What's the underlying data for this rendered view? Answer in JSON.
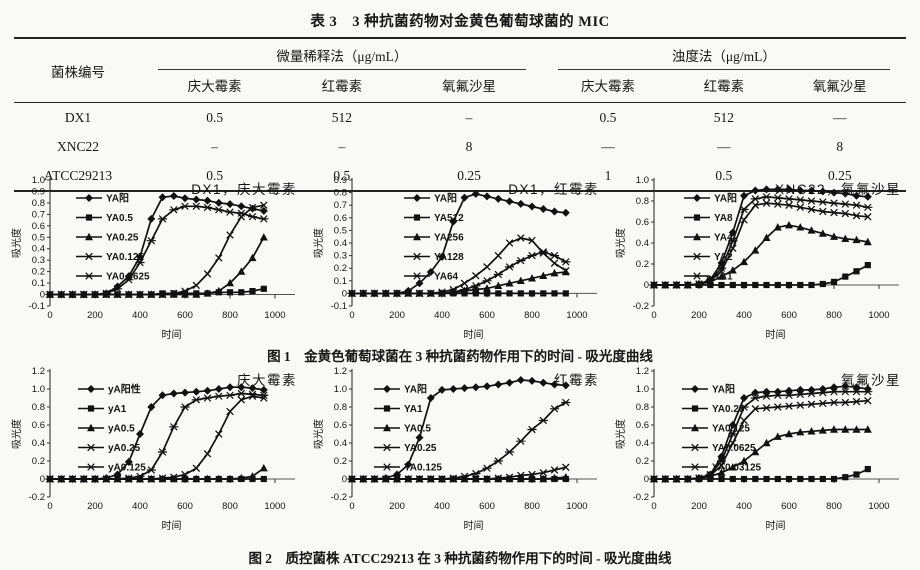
{
  "table": {
    "title": "表 3　3 种抗菌药物对金黄色葡萄球菌的 MIC",
    "header": {
      "strain": "菌株编号",
      "groups": [
        {
          "label": "微量稀释法（μg/mL）",
          "cols": [
            "庆大霉素",
            "红霉素",
            "氧氟沙星"
          ]
        },
        {
          "label": "浊度法（μg/mL）",
          "cols": [
            "庆大霉素",
            "红霉素",
            "氧氟沙星"
          ]
        }
      ]
    },
    "rows": [
      {
        "strain": "DX1",
        "values": [
          "0.5",
          "512",
          "–",
          "0.5",
          "512",
          "—"
        ]
      },
      {
        "strain": "XNC22",
        "values": [
          "–",
          "–",
          "8",
          "—",
          "—",
          "8"
        ]
      },
      {
        "strain": "ATCC29213",
        "values": [
          "0.5",
          "0.5",
          "0.25",
          "1",
          "0.5",
          "0.25"
        ]
      }
    ]
  },
  "figures": [
    {
      "caption": "图 1　金黄色葡萄球菌在 3 种抗菌药物作用下的时间 - 吸光度曲线",
      "chart_indices": [
        0,
        1,
        2
      ]
    },
    {
      "caption": "图 2　质控菌株 ATCC29213 在 3 种抗菌药物作用下的时间 - 吸光度曲线",
      "chart_indices": [
        3,
        4,
        5
      ]
    }
  ],
  "chart_data": [
    {
      "type": "line",
      "title": "DX1，庆大霉素",
      "xlabel": "时间",
      "ylabel": "吸光度",
      "x": [
        0,
        50,
        100,
        150,
        200,
        250,
        300,
        350,
        400,
        450,
        500,
        550,
        600,
        650,
        700,
        750,
        800,
        850,
        900,
        950
      ],
      "xticks": [
        0,
        200,
        400,
        600,
        800,
        1000
      ],
      "xlim": [
        0,
        1080
      ],
      "ylim": [
        -0.1,
        1.0
      ],
      "ystep": 0.1,
      "grid": false,
      "legend_position": "top-left",
      "legend_dx": 26,
      "series": [
        {
          "name": "YA阳",
          "marker": "diamond",
          "values": [
            0,
            0,
            0,
            0,
            0,
            0.01,
            0.07,
            0.16,
            0.33,
            0.66,
            0.85,
            0.86,
            0.84,
            0.83,
            0.82,
            0.8,
            0.79,
            0.77,
            0.75,
            0.73
          ]
        },
        {
          "name": "YA0.5",
          "marker": "square",
          "values": [
            0,
            0,
            0,
            0,
            0,
            0,
            0,
            0,
            0,
            0,
            0.01,
            0.01,
            0.01,
            0.01,
            0.01,
            0.02,
            0.02,
            0.02,
            0.03,
            0.05
          ]
        },
        {
          "name": "YA0.25",
          "marker": "triangle",
          "values": [
            0,
            0,
            0,
            0,
            0,
            0,
            0,
            0,
            0,
            0,
            0,
            0,
            0,
            0,
            0.01,
            0.03,
            0.1,
            0.2,
            0.32,
            0.5
          ]
        },
        {
          "name": "YA0.125",
          "marker": "x",
          "values": [
            0,
            0,
            0,
            0,
            0,
            0,
            0,
            0,
            0,
            0,
            0,
            0.01,
            0.03,
            0.08,
            0.18,
            0.32,
            0.52,
            0.68,
            0.76,
            0.78
          ]
        },
        {
          "name": "YA0.0625",
          "marker": "asterisk",
          "values": [
            0,
            0,
            0,
            0,
            0,
            0.01,
            0.05,
            0.13,
            0.28,
            0.47,
            0.66,
            0.74,
            0.77,
            0.77,
            0.76,
            0.74,
            0.72,
            0.71,
            0.68,
            0.66
          ]
        }
      ]
    },
    {
      "type": "line",
      "title": "DX1，红霉素",
      "xlabel": "时间",
      "ylabel": "吸光度",
      "x": [
        0,
        50,
        100,
        150,
        200,
        250,
        300,
        350,
        400,
        450,
        500,
        550,
        600,
        650,
        700,
        750,
        800,
        850,
        900,
        950
      ],
      "xticks": [
        0,
        200,
        400,
        600,
        800,
        1000
      ],
      "xlim": [
        0,
        1080
      ],
      "ylim": [
        -0.1,
        0.9
      ],
      "ystep": 0.1,
      "grid": false,
      "legend_position": "top-left",
      "legend_dx": 52,
      "series": [
        {
          "name": "YA阳",
          "marker": "diamond",
          "values": [
            0,
            0,
            0,
            0,
            0,
            0.02,
            0.08,
            0.17,
            0.29,
            0.57,
            0.76,
            0.79,
            0.77,
            0.75,
            0.73,
            0.71,
            0.69,
            0.67,
            0.65,
            0.64
          ]
        },
        {
          "name": "YA512",
          "marker": "square",
          "values": [
            0,
            0,
            0,
            0,
            0,
            0,
            0,
            0,
            0,
            0,
            0,
            0,
            0,
            0,
            0,
            0,
            0,
            0,
            0,
            0
          ]
        },
        {
          "name": "YA256",
          "marker": "triangle",
          "values": [
            0,
            0,
            0,
            0,
            0,
            0,
            0,
            0,
            0,
            0.01,
            0.02,
            0.03,
            0.04,
            0.06,
            0.08,
            0.1,
            0.12,
            0.14,
            0.16,
            0.17
          ]
        },
        {
          "name": "YA128",
          "marker": "x",
          "values": [
            0,
            0,
            0,
            0,
            0,
            0,
            0,
            0,
            0.01,
            0.03,
            0.08,
            0.14,
            0.21,
            0.3,
            0.4,
            0.44,
            0.42,
            0.32,
            0.24,
            0.18
          ]
        },
        {
          "name": "YA64",
          "marker": "asterisk",
          "values": [
            0,
            0,
            0,
            0,
            0,
            0,
            0,
            0,
            0,
            0.01,
            0.03,
            0.06,
            0.1,
            0.15,
            0.21,
            0.26,
            0.3,
            0.33,
            0.3,
            0.25
          ]
        }
      ]
    },
    {
      "type": "line",
      "title": "XNC22，氧氟沙星",
      "xlabel": "时间",
      "ylabel": "吸光度",
      "x": [
        0,
        50,
        100,
        150,
        200,
        250,
        300,
        350,
        400,
        450,
        500,
        550,
        600,
        650,
        700,
        750,
        800,
        850,
        900,
        950
      ],
      "xticks": [
        0,
        200,
        400,
        600,
        800,
        1000
      ],
      "xlim": [
        0,
        1080
      ],
      "ylim": [
        -0.2,
        1.0
      ],
      "ystep": 0.2,
      "grid": false,
      "legend_position": "top-left",
      "legend_dx": 30,
      "series": [
        {
          "name": "YA阳",
          "marker": "diamond",
          "values": [
            0,
            0,
            0,
            0,
            0.01,
            0.05,
            0.21,
            0.5,
            0.85,
            0.9,
            0.91,
            0.91,
            0.91,
            0.9,
            0.9,
            0.89,
            0.88,
            0.87,
            0.85,
            0.84
          ]
        },
        {
          "name": "YA8",
          "marker": "square",
          "values": [
            0,
            0,
            0,
            0,
            0,
            0,
            0,
            0,
            0,
            0,
            0,
            0,
            0,
            0,
            0,
            0.01,
            0.03,
            0.08,
            0.13,
            0.19
          ]
        },
        {
          "name": "YA4",
          "marker": "triangle",
          "values": [
            0,
            0,
            0,
            0,
            0.01,
            0.03,
            0.08,
            0.14,
            0.22,
            0.33,
            0.45,
            0.55,
            0.57,
            0.55,
            0.52,
            0.49,
            0.46,
            0.44,
            0.43,
            0.41
          ]
        },
        {
          "name": "YA2",
          "marker": "x",
          "values": [
            0,
            0,
            0,
            0,
            0.01,
            0.04,
            0.13,
            0.35,
            0.62,
            0.76,
            0.78,
            0.77,
            0.76,
            0.74,
            0.72,
            0.7,
            0.69,
            0.68,
            0.66,
            0.65
          ]
        },
        {
          "name": "YA1",
          "marker": "asterisk",
          "values": [
            0,
            0,
            0,
            0,
            0.01,
            0.05,
            0.16,
            0.42,
            0.72,
            0.82,
            0.84,
            0.83,
            0.82,
            0.81,
            0.8,
            0.79,
            0.78,
            0.77,
            0.76,
            0.74
          ]
        }
      ]
    },
    {
      "type": "line",
      "title": "庆大霉素",
      "xlabel": "时间",
      "ylabel": "吸光度",
      "x": [
        0,
        50,
        100,
        150,
        200,
        250,
        300,
        350,
        400,
        450,
        500,
        550,
        600,
        650,
        700,
        750,
        800,
        850,
        900,
        950
      ],
      "xticks": [
        0,
        200,
        400,
        600,
        800,
        1000
      ],
      "xlim": [
        0,
        1080
      ],
      "ylim": [
        -0.2,
        1.2
      ],
      "ystep": 0.2,
      "grid": false,
      "legend_position": "top-left",
      "legend_dx": 28,
      "series": [
        {
          "name": "yA阳性",
          "marker": "diamond",
          "values": [
            0,
            0,
            0,
            0,
            0,
            0.01,
            0.05,
            0.19,
            0.5,
            0.8,
            0.93,
            0.95,
            0.96,
            0.97,
            0.98,
            1.0,
            1.02,
            1.02,
            1.01,
            0.99
          ]
        },
        {
          "name": "yA1",
          "marker": "square",
          "values": [
            0,
            0,
            0,
            0,
            0,
            0,
            0,
            0,
            0,
            0,
            0,
            0,
            0,
            0,
            0,
            0,
            0,
            0,
            0,
            0
          ]
        },
        {
          "name": "yA0.5",
          "marker": "triangle",
          "values": [
            0,
            0,
            0,
            0,
            0,
            0,
            0,
            0,
            0,
            0,
            0,
            0,
            0,
            0,
            0,
            0,
            0,
            0.01,
            0.03,
            0.12
          ]
        },
        {
          "name": "yA0.25",
          "marker": "x",
          "values": [
            0,
            0,
            0,
            0,
            0,
            0,
            0,
            0,
            0,
            0,
            0.01,
            0.02,
            0.05,
            0.12,
            0.28,
            0.5,
            0.75,
            0.88,
            0.92,
            0.9
          ]
        },
        {
          "name": "yA0.125",
          "marker": "asterisk",
          "values": [
            0,
            0,
            0,
            0,
            0,
            0,
            0,
            0.01,
            0.03,
            0.1,
            0.3,
            0.58,
            0.8,
            0.88,
            0.9,
            0.92,
            0.93,
            0.95,
            0.94,
            0.93
          ]
        }
      ]
    },
    {
      "type": "line",
      "title": "红霉素",
      "xlabel": "时间",
      "ylabel": "吸光度",
      "x": [
        0,
        50,
        100,
        150,
        200,
        250,
        300,
        350,
        400,
        450,
        500,
        550,
        600,
        650,
        700,
        750,
        800,
        850,
        900,
        950
      ],
      "xticks": [
        0,
        200,
        400,
        600,
        800,
        1000
      ],
      "xlim": [
        0,
        1080
      ],
      "ylim": [
        -0.2,
        1.2
      ],
      "ystep": 0.2,
      "grid": false,
      "legend_position": "top-left",
      "legend_dx": 22,
      "series": [
        {
          "name": "YA阳",
          "marker": "diamond",
          "values": [
            0,
            0,
            0,
            0.01,
            0.05,
            0.16,
            0.46,
            0.9,
            0.99,
            1.0,
            1.01,
            1.02,
            1.03,
            1.05,
            1.07,
            1.1,
            1.09,
            1.07,
            1.05,
            1.04
          ]
        },
        {
          "name": "YA1",
          "marker": "square",
          "values": [
            0,
            0,
            0,
            0,
            0,
            0,
            0,
            0,
            0,
            0,
            0,
            0,
            0,
            0,
            0,
            0,
            0,
            0,
            0,
            0
          ]
        },
        {
          "name": "YA0.5",
          "marker": "triangle",
          "values": [
            0,
            0,
            0,
            0,
            0,
            0,
            0,
            0,
            0,
            0,
            0,
            0,
            0,
            0,
            0,
            0,
            0,
            0,
            0.01,
            0.02
          ]
        },
        {
          "name": "YA0.25",
          "marker": "x",
          "values": [
            0,
            0,
            0,
            0,
            0,
            0,
            0,
            0,
            0,
            0,
            0,
            0,
            0,
            0.01,
            0.02,
            0.04,
            0.05,
            0.07,
            0.1,
            0.13
          ]
        },
        {
          "name": "YA0.125",
          "marker": "asterisk",
          "values": [
            0,
            0,
            0,
            0,
            0,
            0,
            0,
            0,
            0,
            0.01,
            0.03,
            0.06,
            0.12,
            0.2,
            0.3,
            0.42,
            0.55,
            0.65,
            0.78,
            0.85
          ]
        }
      ]
    },
    {
      "type": "line",
      "title": "氧氟沙星",
      "xlabel": "时间",
      "ylabel": "吸光度",
      "x": [
        0,
        50,
        100,
        150,
        200,
        250,
        300,
        350,
        400,
        450,
        500,
        550,
        600,
        650,
        700,
        750,
        800,
        850,
        900,
        950
      ],
      "xticks": [
        0,
        200,
        400,
        600,
        800,
        1000
      ],
      "xlim": [
        0,
        1080
      ],
      "ylim": [
        -0.2,
        1.2
      ],
      "ystep": 0.2,
      "grid": false,
      "legend_position": "top-left",
      "legend_dx": 28,
      "series": [
        {
          "name": "YA阳",
          "marker": "diamond",
          "values": [
            0,
            0,
            0,
            0,
            0.01,
            0.05,
            0.25,
            0.6,
            0.9,
            0.96,
            0.97,
            0.97,
            0.98,
            0.99,
            0.99,
            1.0,
            1.02,
            1.03,
            1.02,
            1.0
          ]
        },
        {
          "name": "YA0.25",
          "marker": "square",
          "values": [
            0,
            0,
            0,
            0,
            0,
            0,
            0,
            0,
            0,
            0,
            0,
            0,
            0,
            0,
            0,
            0,
            0,
            0.02,
            0.05,
            0.11
          ]
        },
        {
          "name": "YA0.125",
          "marker": "triangle",
          "values": [
            0,
            0,
            0,
            0,
            0.01,
            0.03,
            0.07,
            0.13,
            0.2,
            0.3,
            0.4,
            0.47,
            0.5,
            0.52,
            0.53,
            0.54,
            0.55,
            0.55,
            0.55,
            0.55
          ]
        },
        {
          "name": "YA0.0625",
          "marker": "x",
          "values": [
            0,
            0,
            0,
            0,
            0.01,
            0.04,
            0.15,
            0.4,
            0.65,
            0.78,
            0.79,
            0.8,
            0.81,
            0.82,
            0.83,
            0.84,
            0.85,
            0.85,
            0.86,
            0.87
          ]
        },
        {
          "name": "YA0.03125",
          "marker": "asterisk",
          "values": [
            0,
            0,
            0,
            0,
            0.01,
            0.05,
            0.2,
            0.5,
            0.8,
            0.9,
            0.92,
            0.93,
            0.93,
            0.94,
            0.95,
            0.96,
            0.97,
            0.97,
            0.97,
            0.97
          ]
        }
      ]
    }
  ]
}
